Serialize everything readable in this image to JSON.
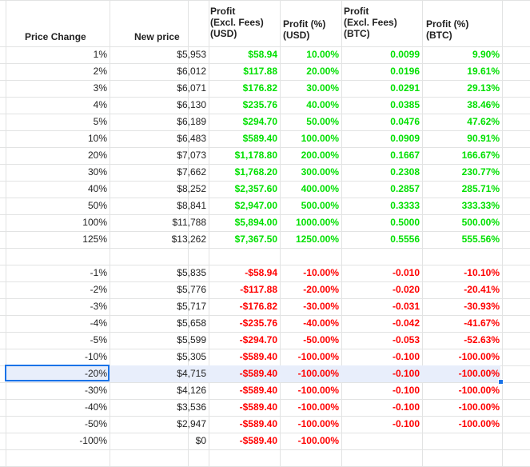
{
  "headers": {
    "price_change": "Price Change",
    "new_price": "New price",
    "profit_usd": [
      "Profit",
      "(Excl. Fees)",
      "(USD)"
    ],
    "profit_pct_usd": [
      "Profit (%)",
      "(USD)"
    ],
    "profit_btc": [
      "Profit",
      "(Excl. Fees)",
      "(BTC)"
    ],
    "profit_pct_btc": [
      "Profit (%)",
      "(BTC)"
    ]
  },
  "positive_rows": [
    [
      "1%",
      "$5,953",
      "$58.94",
      "10.00%",
      "0.0099",
      "9.90%"
    ],
    [
      "2%",
      "$6,012",
      "$117.88",
      "20.00%",
      "0.0196",
      "19.61%"
    ],
    [
      "3%",
      "$6,071",
      "$176.82",
      "30.00%",
      "0.0291",
      "29.13%"
    ],
    [
      "4%",
      "$6,130",
      "$235.76",
      "40.00%",
      "0.0385",
      "38.46%"
    ],
    [
      "5%",
      "$6,189",
      "$294.70",
      "50.00%",
      "0.0476",
      "47.62%"
    ],
    [
      "10%",
      "$6,483",
      "$589.40",
      "100.00%",
      "0.0909",
      "90.91%"
    ],
    [
      "20%",
      "$7,073",
      "$1,178.80",
      "200.00%",
      "0.1667",
      "166.67%"
    ],
    [
      "30%",
      "$7,662",
      "$1,768.20",
      "300.00%",
      "0.2308",
      "230.77%"
    ],
    [
      "40%",
      "$8,252",
      "$2,357.60",
      "400.00%",
      "0.2857",
      "285.71%"
    ],
    [
      "50%",
      "$8,841",
      "$2,947.00",
      "500.00%",
      "0.3333",
      "333.33%"
    ],
    [
      "100%",
      "$11,788",
      "$5,894.00",
      "1000.00%",
      "0.5000",
      "500.00%"
    ],
    [
      "125%",
      "$13,262",
      "$7,367.50",
      "1250.00%",
      "0.5556",
      "555.56%"
    ]
  ],
  "negative_rows": [
    [
      "-1%",
      "$5,835",
      "-$58.94",
      "-10.00%",
      "-0.010",
      "-10.10%"
    ],
    [
      "-2%",
      "$5,776",
      "-$117.88",
      "-20.00%",
      "-0.020",
      "-20.41%"
    ],
    [
      "-3%",
      "$5,717",
      "-$176.82",
      "-30.00%",
      "-0.031",
      "-30.93%"
    ],
    [
      "-4%",
      "$5,658",
      "-$235.76",
      "-40.00%",
      "-0.042",
      "-41.67%"
    ],
    [
      "-5%",
      "$5,599",
      "-$294.70",
      "-50.00%",
      "-0.053",
      "-52.63%"
    ],
    [
      "-10%",
      "$5,305",
      "-$589.40",
      "-100.00%",
      "-0.100",
      "-100.00%"
    ],
    [
      "-20%",
      "$4,715",
      "-$589.40",
      "-100.00%",
      "-0.100",
      "-100.00%"
    ],
    [
      "-30%",
      "$4,126",
      "-$589.40",
      "-100.00%",
      "-0.100",
      "-100.00%"
    ],
    [
      "-40%",
      "$3,536",
      "-$589.40",
      "-100.00%",
      "-0.100",
      "-100.00%"
    ],
    [
      "-50%",
      "$2,947",
      "-$589.40",
      "-100.00%",
      "-0.100",
      "-100.00%"
    ],
    [
      "-100%",
      "$0",
      "-$589.40",
      "-100.00%",
      "",
      ""
    ]
  ],
  "selected_cell_value": "-20%",
  "colors": {
    "positive": "#00e000",
    "negative": "#ff0000",
    "gridline": "#e2e3e3",
    "selection": "#1a73e8",
    "selected_row_fill": "#e8eefb"
  }
}
